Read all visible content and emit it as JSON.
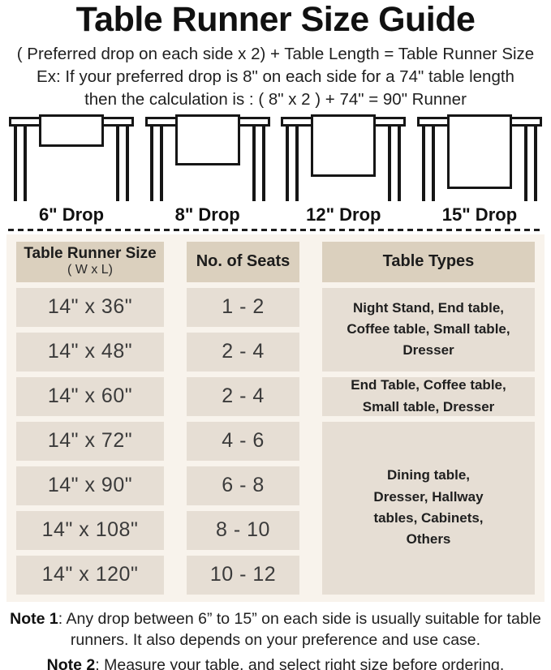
{
  "header": {
    "title": "Table Runner Size Guide",
    "formula": "( Preferred drop on each side x 2) + Table Length = Table Runner Size",
    "example_line1": "Ex: If your preferred drop is 8\" on each side for a 74\" table length",
    "example_line2": "then the calculation is : ( 8\" x 2 ) + 74\" = 90\" Runner"
  },
  "illustrations": [
    {
      "label": "6\" Drop"
    },
    {
      "label": "8\" Drop"
    },
    {
      "label": "12\" Drop"
    },
    {
      "label": "15\" Drop"
    }
  ],
  "table": {
    "header": {
      "col1_title": "Table Runner Size",
      "col1_sub": "( W x L)",
      "col2": "No. of Seats",
      "col3": "Table Types"
    },
    "rows": [
      {
        "size": "14\" x 36\"",
        "seats": "1 - 2"
      },
      {
        "size": "14\" x 48\"",
        "seats": "2 - 4"
      },
      {
        "size": "14\" x 60\"",
        "seats": "2 - 4"
      },
      {
        "size": "14\" x 72\"",
        "seats": "4 - 6"
      },
      {
        "size": "14\" x 90\"",
        "seats": "6 - 8"
      },
      {
        "size": "14\" x 108\"",
        "seats": "8 - 10"
      },
      {
        "size": "14\" x 120\"",
        "seats": "10 - 12"
      }
    ],
    "type_groups": [
      {
        "text": "Night Stand, End table, Coffee table, Small table, Dresser",
        "applies_to_rows": "1-2"
      },
      {
        "text": "End Table, Coffee table, Small table, Dresser",
        "applies_to_rows": "3"
      },
      {
        "text": "Dining table, Dresser, Hallway tables, Cabinets, Others",
        "applies_to_rows": "4-7"
      }
    ]
  },
  "notes": [
    {
      "label": "Note 1",
      "text": ": Any drop between 6” to 15” on each side is usually suitable for table runners. It also depends on your preference and use case."
    },
    {
      "label": "Note 2",
      "text": ": Measure your table, and select right size before ordering."
    }
  ],
  "colors": {
    "section_bg": "#f8f3ec",
    "header_cell_bg": "#dbd0be",
    "body_cell_bg": "#e6ded4",
    "text": "#1d1d1d",
    "line_art": "#161616"
  },
  "chart_data": {
    "type": "table",
    "title": "Table Runner Size Guide",
    "columns": [
      "Table Runner Size ( W x L)",
      "No. of Seats",
      "Table Types"
    ],
    "rows": [
      [
        "14\" x 36\"",
        "1 - 2",
        "Night Stand, End table, Coffee table, Small table, Dresser"
      ],
      [
        "14\" x 48\"",
        "2 - 4",
        "Night Stand, End table, Coffee table, Small table, Dresser"
      ],
      [
        "14\" x 60\"",
        "2 - 4",
        "End Table, Coffee table, Small table, Dresser"
      ],
      [
        "14\" x 72\"",
        "4 - 6",
        "Dining table, Dresser, Hallway tables, Cabinets, Others"
      ],
      [
        "14\" x 90\"",
        "6 - 8",
        "Dining table, Dresser, Hallway tables, Cabinets, Others"
      ],
      [
        "14\" x 108\"",
        "8 - 10",
        "Dining table, Dresser, Hallway tables, Cabinets, Others"
      ],
      [
        "14\" x 120\"",
        "10 - 12",
        "Dining table, Dresser, Hallway tables, Cabinets, Others"
      ]
    ],
    "drops_illustrated": [
      "6\"",
      "8\"",
      "12\"",
      "15\""
    ],
    "formula": "( Preferred drop on each side x 2) + Table Length = Table Runner Size"
  }
}
